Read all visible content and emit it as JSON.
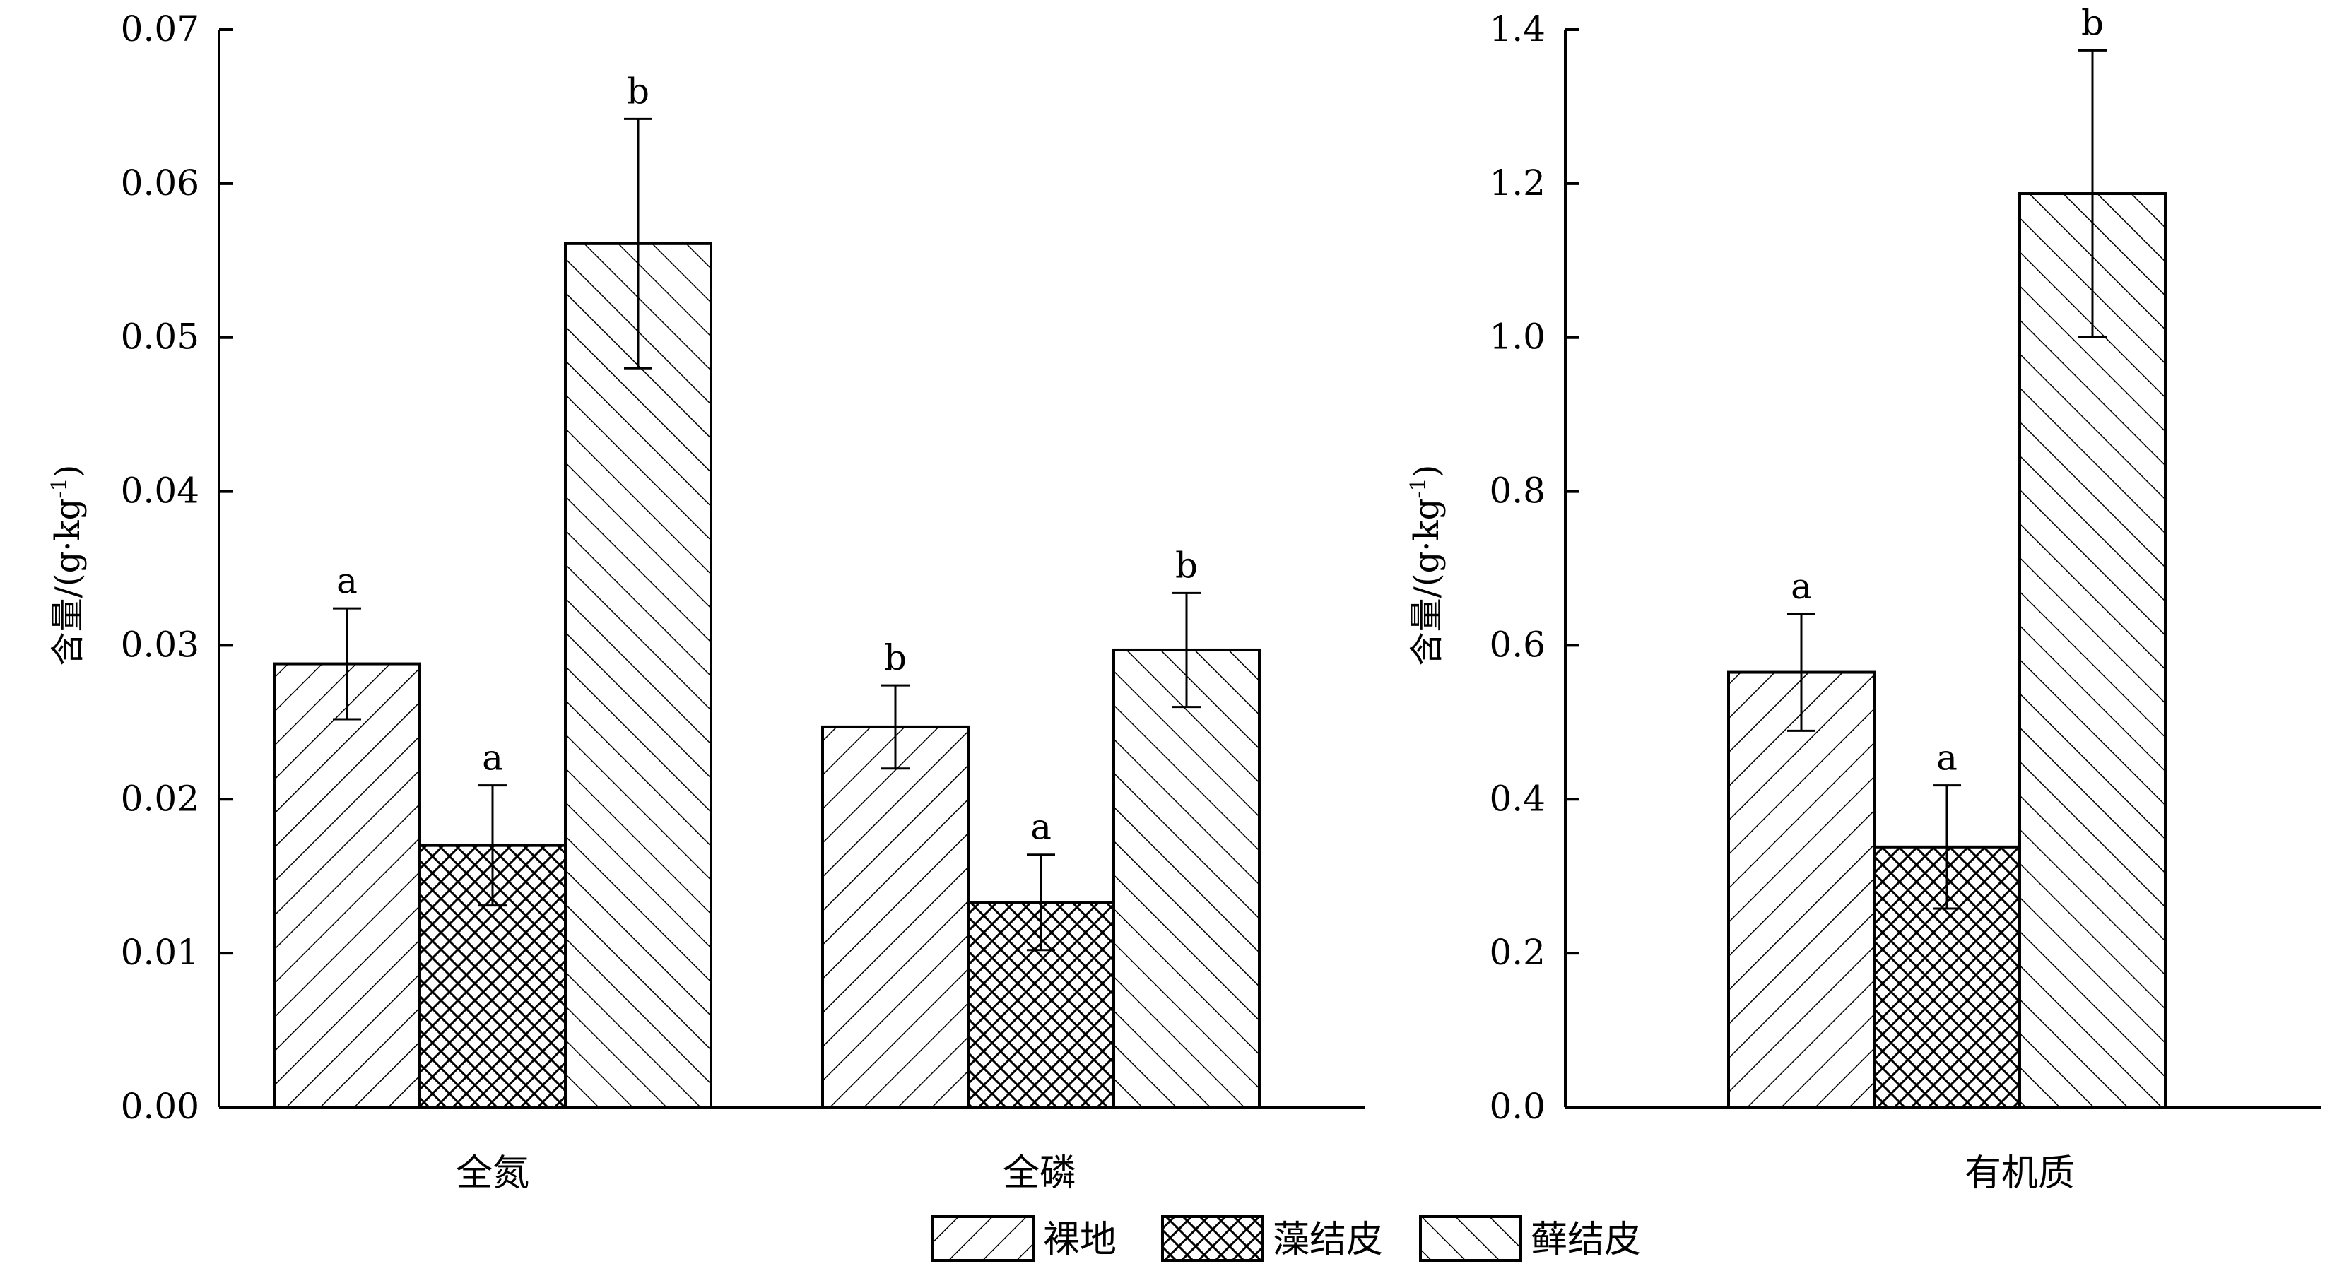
{
  "legend": [
    {
      "label": "裸地",
      "pattern": "fwd-hatch"
    },
    {
      "label": "藻结皮",
      "pattern": "cross-hatch"
    },
    {
      "label": "藓结皮",
      "pattern": "back-hatch"
    }
  ],
  "chart_data": [
    {
      "type": "bar",
      "ylabel": "含量/(g·kg",
      "ylabel_sup": "-1",
      "ylabel_end": ")",
      "ylim": [
        0,
        0.07
      ],
      "yticks": [
        "0.00",
        "0.01",
        "0.02",
        "0.03",
        "0.04",
        "0.05",
        "0.06",
        "0.07"
      ],
      "categories": [
        "全氮",
        "全磷"
      ],
      "series": [
        {
          "name": "裸地",
          "values": [
            0.0288,
            0.0247
          ],
          "errors": [
            0.0036,
            0.0027
          ],
          "labels": [
            "a",
            "b"
          ]
        },
        {
          "name": "藻结皮",
          "values": [
            0.017,
            0.0133
          ],
          "errors": [
            0.0039,
            0.0031
          ],
          "labels": [
            "a",
            "a"
          ]
        },
        {
          "name": "藓结皮",
          "values": [
            0.0561,
            0.0297
          ],
          "errors": [
            0.0081,
            0.0037
          ],
          "labels": [
            "b",
            "b"
          ]
        }
      ],
      "grid": false,
      "legend_position": "bottom-center"
    },
    {
      "type": "bar",
      "ylabel": "含量/(g·kg",
      "ylabel_sup": "-1",
      "ylabel_end": ")",
      "ylim": [
        0,
        1.4
      ],
      "yticks": [
        "0.0",
        "0.2",
        "0.4",
        "0.6",
        "0.8",
        "1.0",
        "1.2",
        "1.4"
      ],
      "categories": [
        "有机质"
      ],
      "series": [
        {
          "name": "裸地",
          "values": [
            0.565
          ],
          "errors": [
            0.076
          ],
          "labels": [
            "a"
          ]
        },
        {
          "name": "藻结皮",
          "values": [
            0.338
          ],
          "errors": [
            0.08
          ],
          "labels": [
            "a"
          ]
        },
        {
          "name": "藓结皮",
          "values": [
            1.187
          ],
          "errors": [
            0.186
          ],
          "labels": [
            "b"
          ]
        }
      ],
      "grid": false,
      "legend_position": "bottom-center"
    }
  ]
}
